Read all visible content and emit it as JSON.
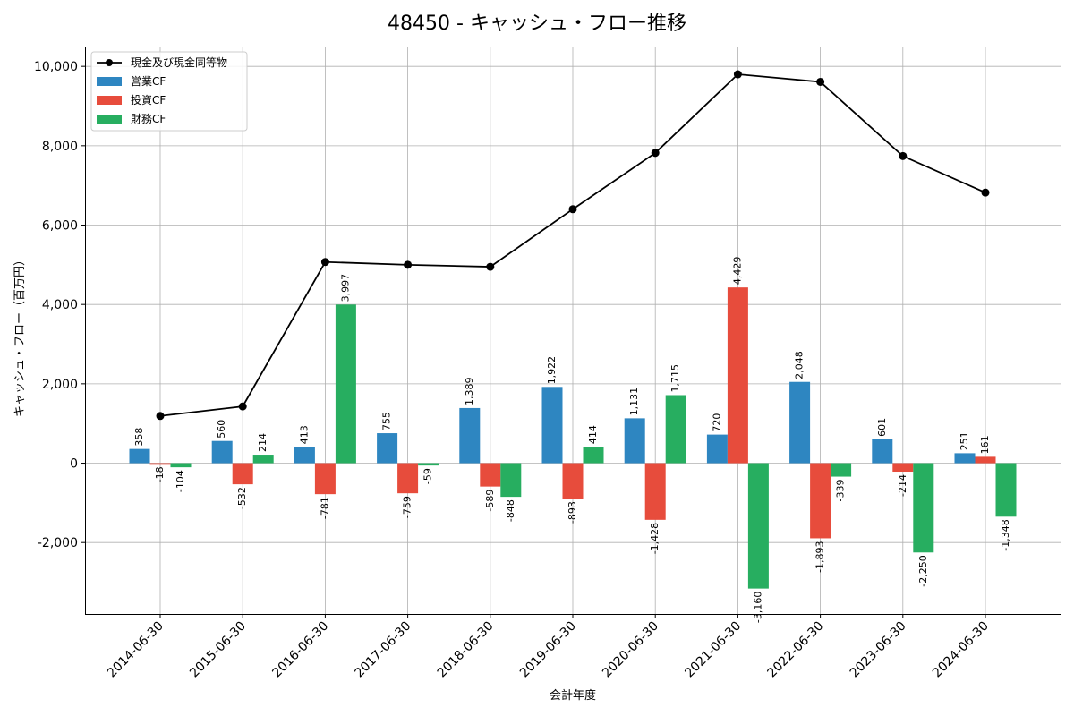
{
  "chart_data": {
    "type": "bar",
    "title": "48450 - キャッシュ・フロー推移",
    "xlabel": "会計年度",
    "ylabel": "キャッシュ・フロー（百万円）",
    "ylim": [
      -3800,
      10500
    ],
    "yticks": [
      -2000,
      0,
      2000,
      4000,
      6000,
      8000,
      10000
    ],
    "ytick_labels": [
      "-2,000",
      "0",
      "2,000",
      "4,000",
      "6,000",
      "8,000",
      "10,000"
    ],
    "grid": true,
    "legend_position": "top-left",
    "categories": [
      "2014-06-30",
      "2015-06-30",
      "2016-06-30",
      "2017-06-30",
      "2018-06-30",
      "2019-06-30",
      "2020-06-30",
      "2021-06-30",
      "2022-06-30",
      "2023-06-30",
      "2024-06-30"
    ],
    "series": [
      {
        "name": "営業CF",
        "kind": "bar",
        "color": "#2e86c1",
        "values": [
          358,
          560,
          413,
          755,
          1389,
          1922,
          1131,
          720,
          2048,
          601,
          251
        ],
        "labels": [
          "358",
          "560",
          "413",
          "755",
          "1,389",
          "1,922",
          "1,131",
          "720",
          "2,048",
          "601",
          "251"
        ]
      },
      {
        "name": "投資CF",
        "kind": "bar",
        "color": "#e74c3c",
        "values": [
          -18,
          -532,
          -781,
          -759,
          -589,
          -893,
          -1428,
          4429,
          -1893,
          -214,
          161
        ],
        "labels": [
          "-18",
          "-532",
          "-781",
          "-759",
          "-589",
          "-893",
          "-1,428",
          "4,429",
          "-1,893",
          "-214",
          "161"
        ]
      },
      {
        "name": "財務CF",
        "kind": "bar",
        "color": "#27ae60",
        "values": [
          -104,
          214,
          3997,
          -59,
          -848,
          414,
          1715,
          -3160,
          -339,
          -2250,
          -1348
        ],
        "labels": [
          "-104",
          "214",
          "3,997",
          "-59",
          "-848",
          "414",
          "1,715",
          "-3,160",
          "-339",
          "-2,250",
          "-1,348"
        ]
      },
      {
        "name": "現金及び現金同等物",
        "kind": "line",
        "color": "#000000",
        "values": [
          1190,
          1430,
          5070,
          5000,
          4950,
          6400,
          7820,
          9800,
          9610,
          7740,
          6820
        ]
      }
    ]
  }
}
